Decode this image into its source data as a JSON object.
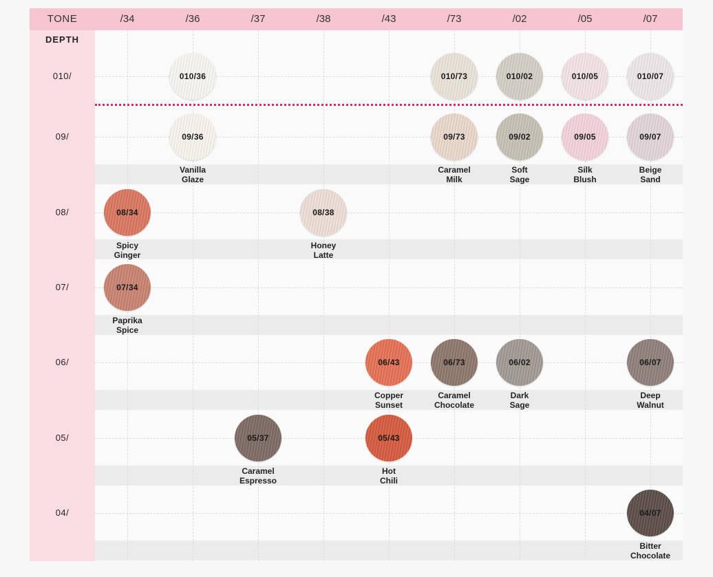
{
  "header": {
    "tone_title": "TONE",
    "depth_title": "DEPTH"
  },
  "tones": [
    "/34",
    "/36",
    "/37",
    "/38",
    "/43",
    "/73",
    "/02",
    "/05",
    "/07"
  ],
  "depths": [
    "010/",
    "09/",
    "08/",
    "07/",
    "06/",
    "05/",
    "04/"
  ],
  "shades": [
    {
      "code": "010/36",
      "depth": 0,
      "tone": 1,
      "name": [],
      "color": "#f8f6f1"
    },
    {
      "code": "010/73",
      "depth": 0,
      "tone": 5,
      "name": [],
      "color": "#ebe3d9"
    },
    {
      "code": "010/02",
      "depth": 0,
      "tone": 6,
      "name": [],
      "color": "#d3cfc5"
    },
    {
      "code": "010/05",
      "depth": 0,
      "tone": 7,
      "name": [],
      "color": "#f3e3e5"
    },
    {
      "code": "010/07",
      "depth": 0,
      "tone": 8,
      "name": [],
      "color": "#eee7ea"
    },
    {
      "code": "09/36",
      "depth": 1,
      "tone": 1,
      "name": [
        "Vanilla",
        "Glaze"
      ],
      "color": "#f8f5ee"
    },
    {
      "code": "09/73",
      "depth": 1,
      "tone": 5,
      "name": [
        "Caramel",
        "Milk"
      ],
      "color": "#ead8cc"
    },
    {
      "code": "09/02",
      "depth": 1,
      "tone": 6,
      "name": [
        "Soft",
        "Sage"
      ],
      "color": "#c6c1b5"
    },
    {
      "code": "09/05",
      "depth": 1,
      "tone": 7,
      "name": [
        "Silk",
        "Blush"
      ],
      "color": "#f3d3da"
    },
    {
      "code": "09/07",
      "depth": 1,
      "tone": 8,
      "name": [
        "Beige",
        "Sand"
      ],
      "color": "#e3d5d9"
    },
    {
      "code": "08/34",
      "depth": 2,
      "tone": 0,
      "name": [
        "Spicy",
        "Ginger"
      ],
      "color": "#d97760"
    },
    {
      "code": "08/38",
      "depth": 2,
      "tone": 3,
      "name": [
        "Honey",
        "Latte"
      ],
      "color": "#eedfd6"
    },
    {
      "code": "07/34",
      "depth": 3,
      "tone": 0,
      "name": [
        "Paprika",
        "Spice"
      ],
      "color": "#c98270"
    },
    {
      "code": "06/43",
      "depth": 4,
      "tone": 4,
      "name": [
        "Copper",
        "Sunset"
      ],
      "color": "#e57155"
    },
    {
      "code": "06/73",
      "depth": 4,
      "tone": 5,
      "name": [
        "Caramel",
        "Chocolate"
      ],
      "color": "#8e776c"
    },
    {
      "code": "06/02",
      "depth": 4,
      "tone": 6,
      "name": [
        "Dark",
        "Sage"
      ],
      "color": "#a19a94"
    },
    {
      "code": "06/07",
      "depth": 4,
      "tone": 8,
      "name": [
        "Deep",
        "Walnut"
      ],
      "color": "#8f7f7a"
    },
    {
      "code": "05/37",
      "depth": 5,
      "tone": 2,
      "name": [
        "Caramel",
        "Espresso"
      ],
      "color": "#7d6a63"
    },
    {
      "code": "05/43",
      "depth": 5,
      "tone": 4,
      "name": [
        "Hot",
        "Chili"
      ],
      "color": "#d65a3d"
    },
    {
      "code": "04/07",
      "depth": 6,
      "tone": 8,
      "name": [
        "Bitter",
        "Chocolate"
      ],
      "color": "#5b4c47"
    }
  ],
  "colors": {
    "header_bg": "#f6c5cf",
    "depth_column_bg": "#fadde3",
    "separator": "#e0245e"
  }
}
